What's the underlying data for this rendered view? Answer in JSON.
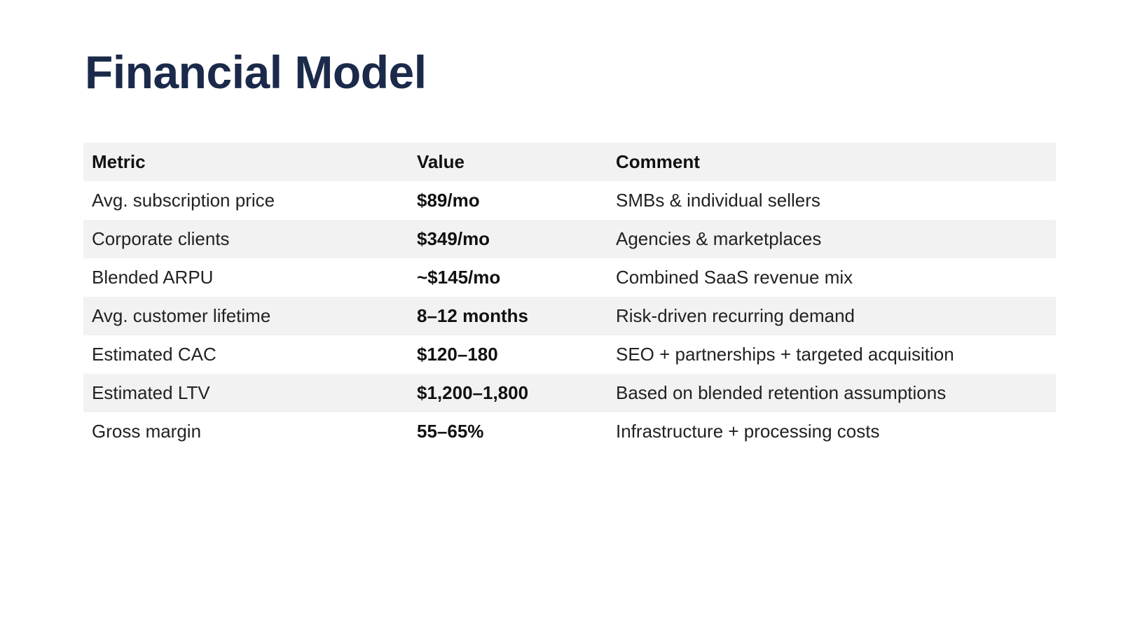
{
  "slide": {
    "title": "Financial Model",
    "title_color": "#1b2a4a"
  },
  "table": {
    "headers": {
      "metric": "Metric",
      "value": "Value",
      "comment": "Comment"
    },
    "header_background": "#f2f2f2",
    "stripe_background": "#f2f2f2",
    "rows": [
      {
        "metric": "Avg. subscription price",
        "value": "$89/mo",
        "comment": "SMBs & individual sellers"
      },
      {
        "metric": "Corporate clients",
        "value": "$349/mo",
        "comment": "Agencies & marketplaces"
      },
      {
        "metric": "Blended ARPU",
        "value": "~$145/mo",
        "comment": "Combined SaaS revenue mix"
      },
      {
        "metric": "Avg. customer lifetime",
        "value": "8–12 months",
        "comment": "Risk-driven recurring demand"
      },
      {
        "metric": "Estimated CAC",
        "value": "$120–180",
        "comment": "SEO + partnerships + targeted acquisition"
      },
      {
        "metric": "Estimated LTV",
        "value": "$1,200–1,800",
        "comment": "Based on blended retention assumptions"
      },
      {
        "metric": "Gross margin",
        "value": "55–65%",
        "comment": "Infrastructure + processing costs"
      }
    ]
  }
}
